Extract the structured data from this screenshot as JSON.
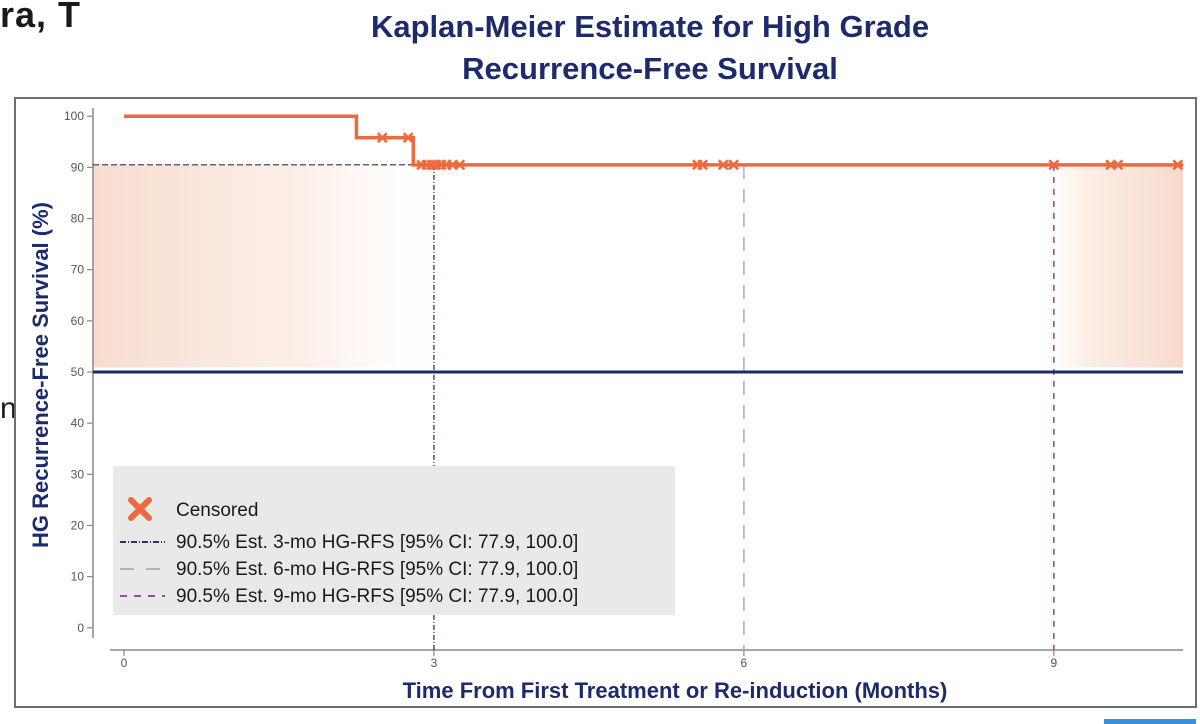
{
  "clipped_top_text": "ra, T",
  "clipped_left_text": "n",
  "colors": {
    "km_line": "#ec6a3c",
    "ci_band": "#f8dccf",
    "median_line": "#1d2a6b",
    "ref3": "#2a2f6e",
    "ref6": "#b4b4b4",
    "ref9": "#9150a6",
    "title": "#1d2a6b",
    "legend_bg": "#e9e9e9"
  },
  "chart_data": {
    "type": "line",
    "title": "Kaplan-Meier Estimate for High Grade Recurrence-Free Survival",
    "title_lines": [
      "Kaplan-Meier Estimate for High Grade",
      "Recurrence-Free Survival"
    ],
    "xlabel": "Time From First Treatment or Re-induction (Months)",
    "ylabel": "HG Recurrence-Free Survival (%)",
    "xlim": [
      -0.3,
      10.25
    ],
    "ylim": [
      -2,
      102
    ],
    "xticks": [
      0,
      3,
      6,
      9
    ],
    "yticks": [
      0,
      10,
      20,
      30,
      40,
      50,
      60,
      70,
      80,
      90,
      100
    ],
    "km_curve": {
      "name": "",
      "x": [
        0,
        2.25,
        2.25,
        2.8,
        2.8,
        10.25
      ],
      "y": [
        100,
        100,
        95.8,
        95.8,
        90.5,
        90.5
      ]
    },
    "censored": {
      "name": "Censored",
      "x": [
        2.5,
        2.75,
        2.88,
        2.93,
        2.98,
        3.02,
        3.07,
        3.12,
        3.18,
        3.25,
        5.55,
        5.6,
        5.8,
        5.9,
        9.0,
        9.55,
        9.62,
        10.2
      ],
      "y": [
        95.8,
        95.8,
        90.5,
        90.5,
        90.5,
        90.5,
        90.5,
        90.5,
        90.5,
        90.5,
        90.5,
        90.5,
        90.5,
        90.5,
        90.5,
        90.5,
        90.5,
        90.5
      ]
    },
    "median_line_y": 50,
    "ci_band": {
      "y_low": 50.9,
      "y_high": 90.5,
      "x_left_end": 3.2,
      "x_right_start": 8.8
    },
    "reference_lines": [
      {
        "name": "90.5% Est. 3-mo HG-RFS [95% CI: 77.9, 100.0]",
        "x": 3,
        "y": 90.5,
        "style": "dashdot"
      },
      {
        "name": "90.5% Est. 6-mo HG-RFS [95% CI: 77.9, 100.0]",
        "x": 6,
        "y": 90.5,
        "style": "dashed"
      },
      {
        "name": "90.5% Est. 9-mo HG-RFS [95% CI: 77.9, 100.0]",
        "x": 9,
        "y": 90.5,
        "style": "dotted"
      }
    ],
    "legend": {
      "position": "bottom-left",
      "entries": [
        "Censored",
        "90.5% Est. 3-mo HG-RFS [95% CI: 77.9, 100.0]",
        "90.5% Est. 6-mo HG-RFS [95% CI: 77.9, 100.0]",
        "90.5% Est. 9-mo HG-RFS [95% CI: 77.9, 100.0]"
      ]
    },
    "grid": false
  }
}
